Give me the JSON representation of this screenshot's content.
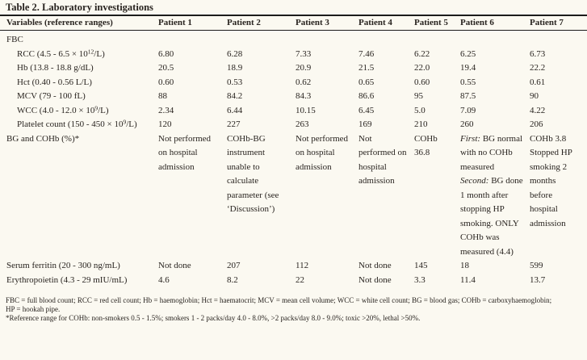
{
  "title": "Table 2. Laboratory investigations",
  "colors": {
    "background": "#fbf9f1",
    "text": "#292420",
    "rule": "#1c1c1c"
  },
  "table": {
    "header": [
      "Variables (reference ranges)",
      "Patient 1",
      "Patient 2",
      "Patient 3",
      "Patient 4",
      "Patient 5",
      "Patient 6",
      "Patient 7"
    ],
    "rows": [
      {
        "label": "FBC",
        "values": [
          "",
          "",
          "",
          "",
          "",
          "",
          ""
        ]
      },
      {
        "label_parts": [
          "RCC (4.5 - 6.5 × 10",
          "12",
          "/L)"
        ],
        "values": [
          "6.80",
          "6.28",
          "7.33",
          "7.46",
          "6.22",
          "6.25",
          "6.73"
        ]
      },
      {
        "label": "Hb (13.8 - 18.8 g/dL)",
        "values": [
          "20.5",
          "18.9",
          "20.9",
          "21.5",
          "22.0",
          "19.4",
          "22.2"
        ]
      },
      {
        "label": "Hct (0.40 - 0.56 L/L)",
        "values": [
          "0.60",
          "0.53",
          "0.62",
          "0.65",
          "0.60",
          "0.55",
          "0.61"
        ]
      },
      {
        "label": "MCV (79 - 100 fL)",
        "values": [
          "88",
          "84.2",
          "84.3",
          "86.6",
          "95",
          "87.5",
          "90"
        ]
      },
      {
        "label_parts": [
          "WCC (4.0 - 12.0 × 10",
          "9",
          "/L)"
        ],
        "values": [
          "2.34",
          "6.44",
          "10.15",
          "6.45",
          "5.0",
          "7.09",
          "4.22"
        ]
      },
      {
        "label_parts": [
          "Platelet count (150 - 450 × 10",
          "9",
          "/L)"
        ],
        "values": [
          "120",
          "227",
          "263",
          "169",
          "210",
          "260",
          "206"
        ]
      },
      {
        "label": "BG and COHb (%)*",
        "values": [
          "Not performed on hospital admission",
          "COHb-BG instrument unable to calculate parameter (see ‘Discussion’)",
          "Not performed on hospital admission",
          "Not performed on hospital admission",
          "COHb 36.8",
          "",
          "COHb 3.8 Stopped HP smoking 2 months before hospital admission"
        ]
      },
      {
        "label": "Serum ferritin (20 - 300 ng/mL)",
        "values": [
          "Not done",
          "207",
          "112",
          "Not done",
          "145",
          "18",
          "599"
        ]
      },
      {
        "label": "Erythropoietin (4.3 - 29 mIU/mL)",
        "values": [
          "4.6",
          "8.2",
          "22",
          "Not done",
          "3.3",
          "11.4",
          "13.7"
        ]
      }
    ],
    "bg_cohb_patient6": {
      "first_label": "First:",
      "first_text": " BG normal with no COHb measured ",
      "second_label": "Second:",
      "second_text": " BG done 1 month after stopping HP smoking. ONLY COHb was measured (4.4)"
    }
  },
  "footnotes": [
    "FBC = full blood count; RCC = red cell count; Hb = haemoglobin; Hct = haematocrit; MCV = mean cell volume; WCC = white cell count; BG = blood gas; COHb = carboxyhaemoglobin;",
    "HP = hookah pipe.",
    "*Reference range for COHb: non-smokers 0.5 - 1.5%; smokers 1 - 2 packs/day 4.0 - 8.0%, >2 packs/day 8.0 - 9.0%; toxic >20%, lethal >50%."
  ]
}
